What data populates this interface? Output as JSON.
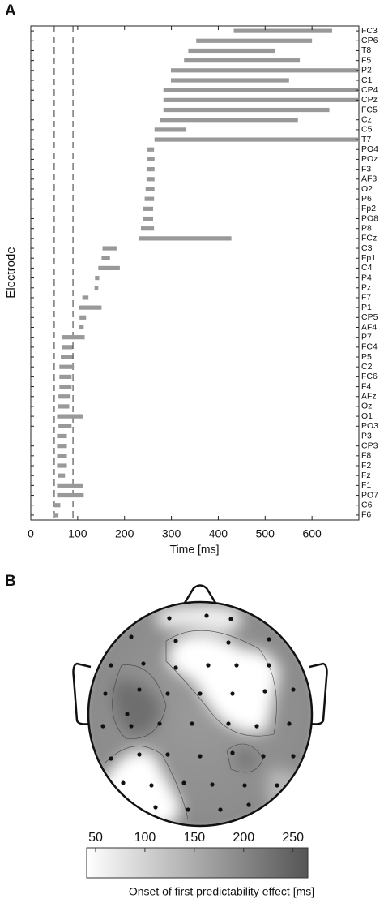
{
  "chart_data": [
    {
      "type": "range",
      "panel_label": "A",
      "xlabel": "Time [ms]",
      "ylabel": "Electrode",
      "categories": [
        "FC3",
        "CP6",
        "T8",
        "F5",
        "P2",
        "C1",
        "CP4",
        "CPz",
        "FC5",
        "Cz",
        "C5",
        "T7",
        "PO4",
        "POz",
        "F3",
        "AF3",
        "O2",
        "P6",
        "Fp2",
        "PO8",
        "P8",
        "FCz",
        "C3",
        "Fp1",
        "C4",
        "P4",
        "Pz",
        "F7",
        "P1",
        "CP5",
        "AF4",
        "P7",
        "FC4",
        "P5",
        "C2",
        "FC6",
        "F4",
        "AFz",
        "Oz",
        "O1",
        "PO3",
        "P3",
        "CP3",
        "F8",
        "F2",
        "Fz",
        "F1",
        "PO7",
        "C6",
        "F6"
      ],
      "starts": [
        433,
        353,
        336,
        327,
        299,
        299,
        283,
        283,
        283,
        275,
        264,
        264,
        249,
        249,
        247,
        247,
        245,
        243,
        240,
        240,
        235,
        230,
        153,
        151,
        144,
        137,
        136,
        110,
        103,
        104,
        103,
        66,
        66,
        64,
        61,
        61,
        61,
        59,
        57,
        56,
        59,
        56,
        56,
        56,
        56,
        57,
        56,
        56,
        50,
        49
      ],
      "ends": [
        643,
        600,
        522,
        574,
        700,
        551,
        700,
        700,
        637,
        570,
        332,
        700,
        263,
        264,
        264,
        264,
        264,
        263,
        261,
        261,
        263,
        428,
        183,
        169,
        190,
        146,
        144,
        123,
        151,
        118,
        113,
        115,
        89,
        89,
        92,
        87,
        87,
        85,
        82,
        111,
        87,
        77,
        77,
        77,
        77,
        73,
        111,
        113,
        63,
        59
      ],
      "color": "#999999",
      "reference_lines": [
        50,
        90
      ],
      "xlim": [
        0,
        700
      ],
      "xticks": [
        0,
        100,
        200,
        300,
        400,
        500,
        600
      ]
    },
    {
      "type": "topomap",
      "panel_label": "B",
      "colorbar_label": "Onset of first predictability effect [ms]",
      "clim": [
        41,
        265
      ],
      "colorbar_ticks": [
        50,
        100,
        150,
        200,
        250
      ]
    }
  ]
}
